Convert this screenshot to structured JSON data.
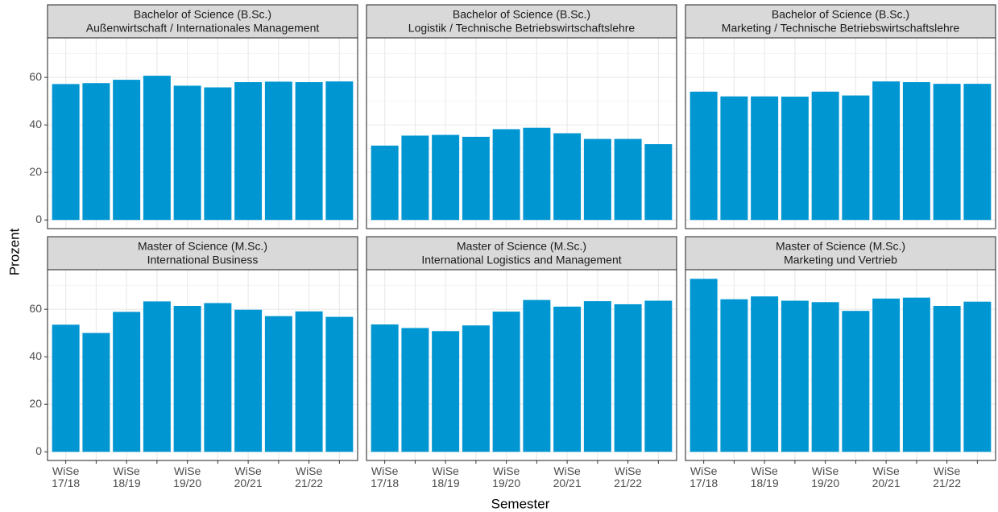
{
  "chart_data": {
    "type": "bar",
    "xlabel": "Semester",
    "ylabel": "Prozent",
    "color": "#0096d2",
    "categories": [
      "WiSe 17/18",
      null,
      "WiSe 18/19",
      null,
      "WiSe 19/20",
      null,
      "WiSe 20/21",
      null,
      "WiSe 21/22",
      null
    ],
    "ylim": [
      -3.65,
      76.65
    ],
    "yticks": [
      0,
      20,
      40,
      60
    ],
    "yminor": [
      10,
      30,
      50,
      70
    ],
    "grid": true,
    "panels": [
      {
        "title": [
          "Bachelor of Science (B.Sc.)",
          "Außenwirtschaft / Internationales Management"
        ],
        "values": [
          57.2,
          57.6,
          59.0,
          60.7,
          56.5,
          55.8,
          58.0,
          58.2,
          58.0,
          58.3
        ]
      },
      {
        "title": [
          "Bachelor of Science (B.Sc.)",
          "Logistik / Technische Betriebswirtschaftslehre"
        ],
        "values": [
          31.3,
          35.5,
          35.8,
          35.0,
          38.2,
          38.8,
          36.5,
          34.1,
          34.1,
          31.9
        ]
      },
      {
        "title": [
          "Bachelor of Science (B.Sc.)",
          "Marketing / Technische Betriebswirtschaftslehre"
        ],
        "values": [
          54.0,
          52.0,
          52.0,
          51.9,
          54.0,
          52.4,
          58.3,
          58.0,
          57.3,
          57.3
        ]
      },
      {
        "title": [
          "Master of Science (M.Sc.)",
          "International Business"
        ],
        "values": [
          53.5,
          50.0,
          58.9,
          63.3,
          61.4,
          62.6,
          59.8,
          57.1,
          59.1,
          56.8
        ]
      },
      {
        "title": [
          "Master of Science (M.Sc.)",
          "International Logistics and Management"
        ],
        "values": [
          53.6,
          52.1,
          50.8,
          53.2,
          59.0,
          63.9,
          61.1,
          63.4,
          62.1,
          63.6
        ]
      },
      {
        "title": [
          "Master of Science (M.Sc.)",
          "Marketing und Vertrieb"
        ],
        "values": [
          72.8,
          64.2,
          65.4,
          63.6,
          63.0,
          59.3,
          64.5,
          64.9,
          61.4,
          63.2
        ]
      }
    ]
  }
}
